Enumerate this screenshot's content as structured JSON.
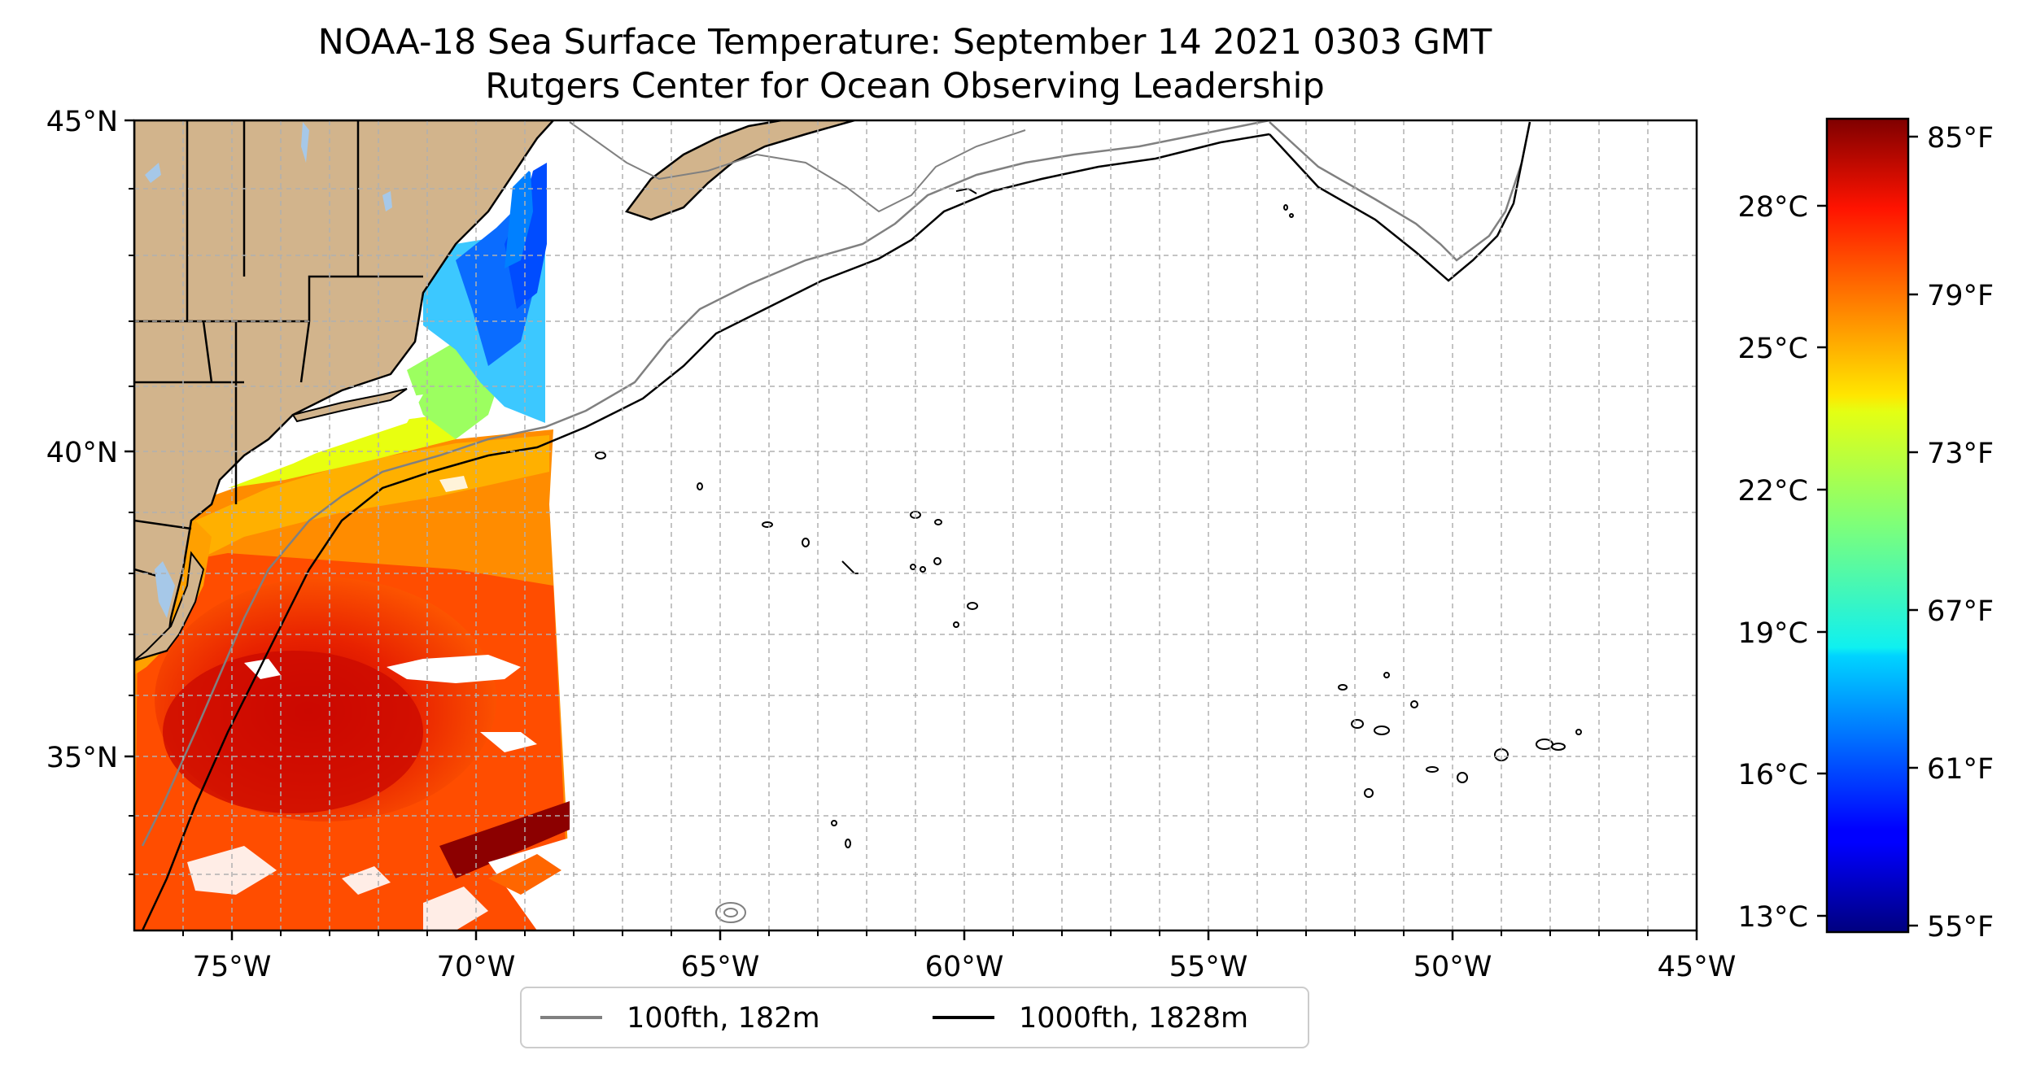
{
  "title_line1": "NOAA-18 Sea Surface Temperature: September 14 2021 0303 GMT",
  "title_line2": "Rutgers Center for Ocean Observing Leadership",
  "lat_ticks": [
    {
      "label": "45°N",
      "value": 45
    },
    {
      "label": "40°N",
      "value": 40
    },
    {
      "label": "35°N",
      "value": 35
    }
  ],
  "lon_ticks": [
    {
      "label": "75°W",
      "value": -75
    },
    {
      "label": "70°W",
      "value": -70
    },
    {
      "label": "65°W",
      "value": -65
    },
    {
      "label": "60°W",
      "value": -60
    },
    {
      "label": "55°W",
      "value": -55
    },
    {
      "label": "50°W",
      "value": -50
    },
    {
      "label": "45°W",
      "value": -45
    }
  ],
  "celsius_ticks": [
    "28°C",
    "25°C",
    "22°C",
    "19°C",
    "16°C",
    "13°C"
  ],
  "fahrenheit_ticks": [
    "85°F",
    "79°F",
    "73°F",
    "67°F",
    "61°F",
    "55°F"
  ],
  "legend": {
    "item1": {
      "label": "100fth, 182m",
      "color": "#808080"
    },
    "item2": {
      "label": "1000fth, 1828m",
      "color": "#000000"
    }
  },
  "colors": {
    "land": "#d2b48c",
    "water_inland": "#a6c8e8",
    "grid": "#b0b0b0"
  },
  "colormap": "jet",
  "temp_range_f": [
    55,
    85
  ]
}
